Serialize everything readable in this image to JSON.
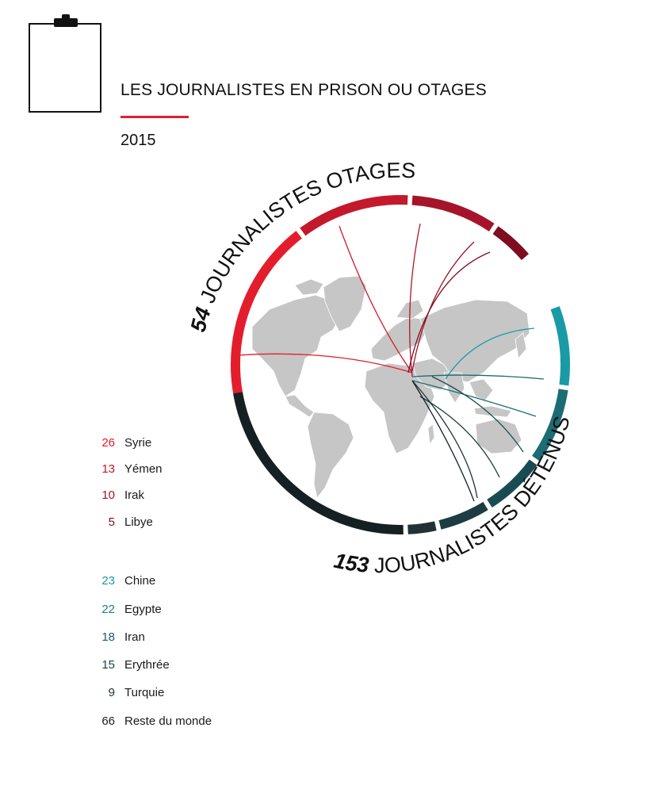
{
  "header": {
    "title": "LES JOURNALISTES EN PRISON OU OTAGES",
    "year": "2015",
    "icon": "clipboard-icon"
  },
  "colors": {
    "accent": "#e0202f",
    "hostage": [
      "#e41d2d",
      "#c3192b",
      "#a5142a",
      "#7e0d1f"
    ],
    "detained": [
      "#1a9aa6",
      "#1c6c73",
      "#184c52",
      "#1d3d42",
      "#203236",
      "#152022"
    ],
    "map": "#c6c6c6"
  },
  "chart_data": {
    "type": "chord",
    "title": "LES JOURNALISTES EN PRISON OU OTAGES",
    "subtitle": "2015",
    "groups": [
      {
        "name": "JOURNALISTES OTAGES",
        "total": 54,
        "series": [
          {
            "name": "Syrie",
            "value": 26
          },
          {
            "name": "Yémen",
            "value": 13
          },
          {
            "name": "Irak",
            "value": 10
          },
          {
            "name": "Libye",
            "value": 5
          }
        ]
      },
      {
        "name": "JOURNALISTES DÉTENUS",
        "total": 153,
        "series": [
          {
            "name": "Chine",
            "value": 23
          },
          {
            "name": "Egypte",
            "value": 22
          },
          {
            "name": "Iran",
            "value": 18
          },
          {
            "name": "Erythrée",
            "value": 15
          },
          {
            "name": "Turquie",
            "value": 9
          },
          {
            "name": "Reste du monde",
            "value": 66
          }
        ]
      }
    ]
  },
  "labels": {
    "hostage_num": "54",
    "hostage_text": " JOURNALISTES OTAGES",
    "detained_num": "153",
    "detained_text": " JOURNALISTES DÉTENUS"
  }
}
